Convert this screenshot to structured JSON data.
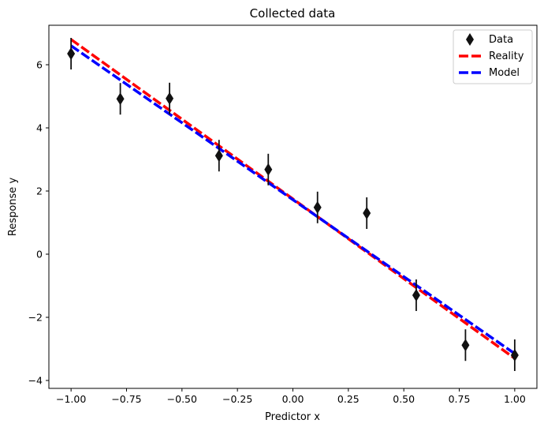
{
  "chart_data": {
    "type": "scatter",
    "title": "Collected data",
    "xlabel": "Predictor x",
    "ylabel": "Response y",
    "xlim": [
      -1.1,
      1.1
    ],
    "ylim": [
      -4.25,
      7.25
    ],
    "xticks": [
      -1.0,
      -0.75,
      -0.5,
      -0.25,
      0.0,
      0.25,
      0.5,
      0.75,
      1.0
    ],
    "xtick_labels": [
      "−1.00",
      "−0.75",
      "−0.50",
      "−0.25",
      "0.00",
      "0.25",
      "0.50",
      "0.75",
      "1.00"
    ],
    "yticks": [
      -4,
      -2,
      0,
      2,
      4,
      6
    ],
    "ytick_labels": [
      "−4",
      "−2",
      "0",
      "2",
      "4",
      "6"
    ],
    "grid": false,
    "legend_position": "top-right",
    "series": [
      {
        "name": "Data",
        "kind": "errorbar-scatter",
        "marker": "thin-diamond",
        "color": "#111111",
        "x": [
          -1.0,
          -0.778,
          -0.556,
          -0.333,
          -0.111,
          0.111,
          0.333,
          0.556,
          0.778,
          1.0
        ],
        "y": [
          6.35,
          4.92,
          4.93,
          3.12,
          2.68,
          1.48,
          1.3,
          -1.3,
          -2.88,
          -3.2
        ],
        "yerr": 0.5
      },
      {
        "name": "Reality",
        "kind": "line",
        "style": "dashed",
        "color": "#ff0000",
        "x": [
          -1.0,
          1.0
        ],
        "y": [
          6.8,
          -3.3
        ]
      },
      {
        "name": "Model",
        "kind": "line",
        "style": "dashed",
        "color": "#0000ff",
        "x": [
          -1.0,
          1.0
        ],
        "y": [
          6.6,
          -3.15
        ]
      }
    ]
  }
}
